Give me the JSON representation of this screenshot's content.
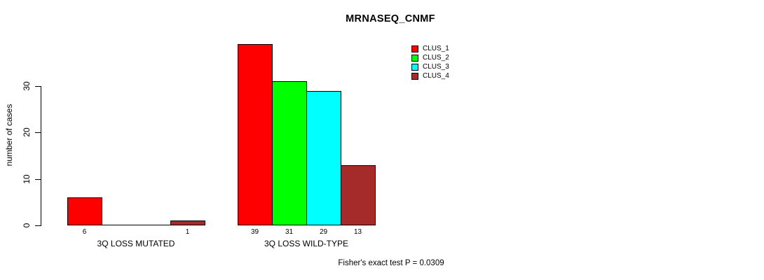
{
  "chart_data": {
    "type": "bar",
    "title": "MRNASEQ_CNMF",
    "ylabel": "number of cases",
    "xlabel": "",
    "categories": [
      "3Q LOSS MUTATED",
      "3Q LOSS WILD-TYPE"
    ],
    "series": [
      {
        "name": "CLUS_1",
        "color": "#ff0000",
        "values": [
          6,
          39
        ]
      },
      {
        "name": "CLUS_2",
        "color": "#00ff00",
        "values": [
          0,
          31
        ]
      },
      {
        "name": "CLUS_3",
        "color": "#00ffff",
        "values": [
          0,
          29
        ]
      },
      {
        "name": "CLUS_4",
        "color": "#a52a2a",
        "values": [
          1,
          13
        ]
      }
    ],
    "yticks": [
      0,
      10,
      20,
      30
    ],
    "ylim": [
      0,
      39
    ],
    "grid": false,
    "legend_position": "top-right",
    "bar_value_labels_shown_for_nonzero_only": true,
    "bar_value_labels": [
      6,
      1,
      39,
      31,
      29,
      13
    ],
    "annotation": "Fisher's exact test P = 0.0309"
  }
}
